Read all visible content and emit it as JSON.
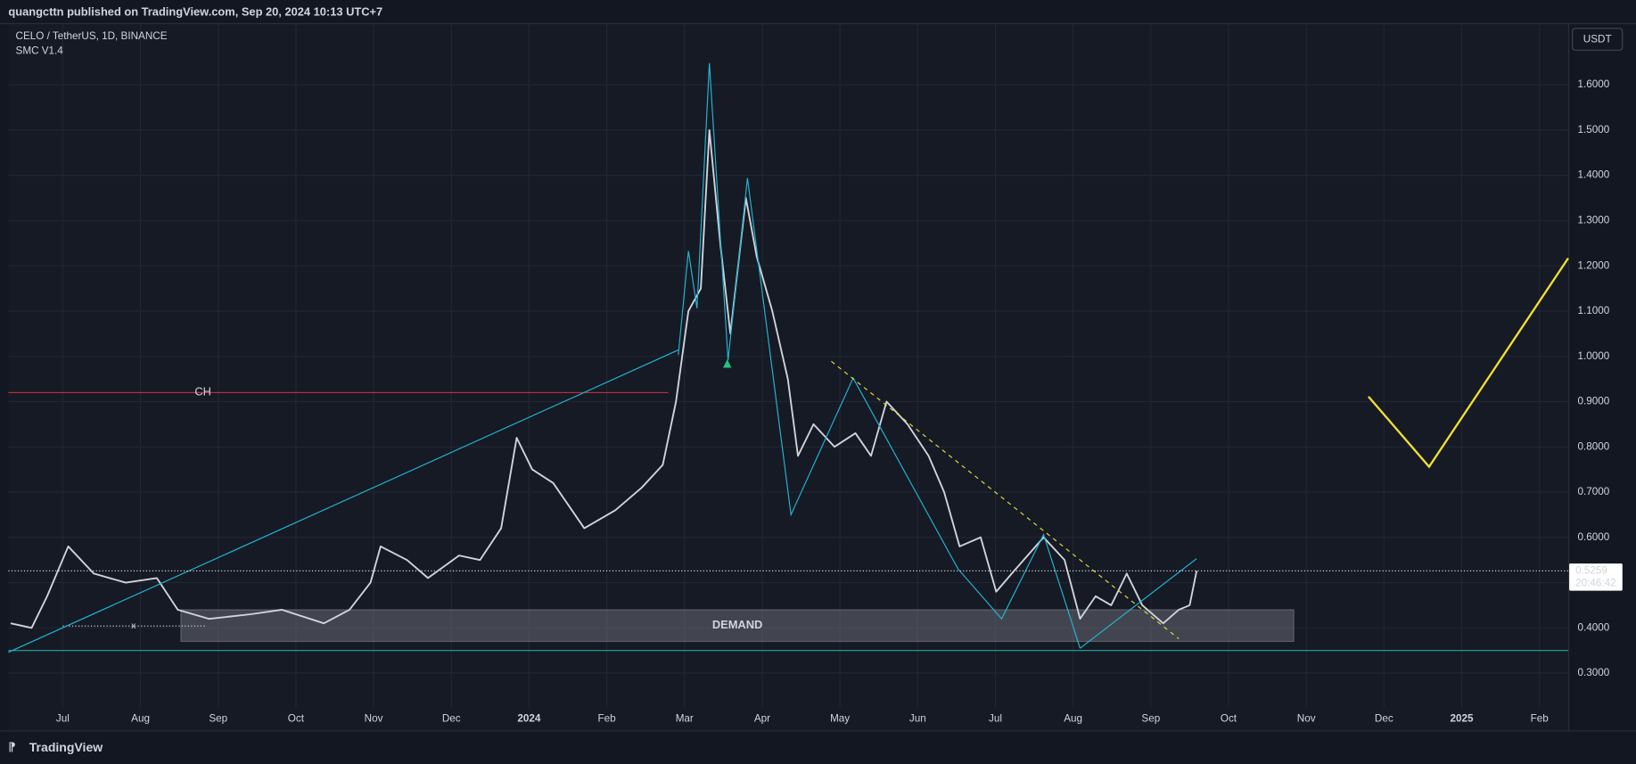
{
  "header": {
    "publisher": "quangcttn published on TradingView.com, Sep 20, 2024 10:13 UTC+7"
  },
  "chart_data": {
    "type": "line",
    "symbol": "CELO / TetherUS, 1D, BINANCE",
    "indicator": "SMC V1.4",
    "currency": "USDT",
    "x": [
      -0.67,
      -0.4,
      -0.2,
      0.07,
      0.4,
      0.81,
      1.21,
      1.48,
      1.88,
      2.42,
      2.82,
      3.36,
      3.69,
      3.96,
      4.09,
      4.43,
      4.7,
      5.1,
      5.37,
      5.64,
      5.84,
      6.04,
      6.31,
      6.71,
      7.11,
      7.45,
      7.72,
      7.89,
      8.05,
      8.21,
      8.32,
      8.46,
      8.59,
      8.79,
      8.93,
      9.13,
      9.33,
      9.46,
      9.66,
      9.93,
      10.2,
      10.4,
      10.6,
      10.87,
      11.14,
      11.34,
      11.54,
      11.81,
      12.01,
      12.21,
      12.62,
      12.89,
      13.09,
      13.29,
      13.49,
      13.69,
      13.89,
      14.16,
      14.36,
      14.5,
      14.59
    ],
    "values": [
      0.41,
      0.4,
      0.47,
      0.58,
      0.52,
      0.5,
      0.51,
      0.44,
      0.42,
      0.43,
      0.44,
      0.41,
      0.44,
      0.5,
      0.58,
      0.55,
      0.51,
      0.56,
      0.55,
      0.62,
      0.82,
      0.75,
      0.72,
      0.62,
      0.66,
      0.71,
      0.76,
      0.9,
      1.1,
      1.15,
      1.5,
      1.25,
      1.05,
      1.35,
      1.22,
      1.1,
      0.95,
      0.78,
      0.85,
      0.8,
      0.83,
      0.78,
      0.9,
      0.85,
      0.78,
      0.7,
      0.58,
      0.6,
      0.48,
      0.52,
      0.6,
      0.55,
      0.42,
      0.47,
      0.45,
      0.52,
      0.45,
      0.41,
      0.44,
      0.45,
      0.526
    ],
    "color": "#d1d4dc",
    "xlim": [
      -0.7,
      19.37
    ],
    "ylim": [
      0.224,
      1.734
    ],
    "xticks": [
      {
        "value": 0,
        "label": "Jul"
      },
      {
        "value": 1,
        "label": "Aug"
      },
      {
        "value": 2,
        "label": "Sep"
      },
      {
        "value": 3,
        "label": "Oct"
      },
      {
        "value": 4,
        "label": "Nov"
      },
      {
        "value": 5,
        "label": "Dec"
      },
      {
        "value": 6,
        "label": "2024"
      },
      {
        "value": 7,
        "label": "Feb"
      },
      {
        "value": 8,
        "label": "Mar"
      },
      {
        "value": 9,
        "label": "Apr"
      },
      {
        "value": 10,
        "label": "May"
      },
      {
        "value": 11,
        "label": "Jun"
      },
      {
        "value": 12,
        "label": "Jul"
      },
      {
        "value": 13,
        "label": "Aug"
      },
      {
        "value": 14,
        "label": "Sep"
      },
      {
        "value": 15,
        "label": "Oct"
      },
      {
        "value": 16,
        "label": "Nov"
      },
      {
        "value": 17,
        "label": "Dec"
      },
      {
        "value": 18,
        "label": "2025"
      },
      {
        "value": 19,
        "label": "Feb"
      }
    ],
    "yticks": [
      {
        "value": 0.3,
        "label": "0.3000"
      },
      {
        "value": 0.4,
        "label": "0.4000"
      },
      {
        "value": 0.5,
        "label": "0.5000"
      },
      {
        "value": 0.6,
        "label": "0.6000"
      },
      {
        "value": 0.7,
        "label": "0.7000"
      },
      {
        "value": 0.8,
        "label": "0.8000"
      },
      {
        "value": 0.9,
        "label": "0.9000"
      },
      {
        "value": 1.0,
        "label": "1.0000"
      },
      {
        "value": 1.1,
        "label": "1.1000"
      },
      {
        "value": 1.2,
        "label": "1.2000"
      },
      {
        "value": 1.3,
        "label": "1.3000"
      },
      {
        "value": 1.4,
        "label": "1.4000"
      },
      {
        "value": 1.5,
        "label": "1.5000"
      },
      {
        "value": 1.6,
        "label": "1.6000"
      }
    ],
    "grid": true,
    "last_price": 0.5259,
    "countdown": "20:46:42",
    "demand": {
      "label": "DEMAND",
      "low": 0.37,
      "high": 0.44,
      "x": [
        1.52,
        15.84
      ]
    },
    "ch": {
      "label": "CH",
      "price": 0.92,
      "x": [
        -0.7,
        7.79
      ],
      "color": "#f23645"
    },
    "support": {
      "price": 0.35,
      "color": "#26a69a"
    },
    "x_mark": {
      "label": "x",
      "x": 0.91,
      "price": 0.404
    },
    "signal": {
      "x": 8.55,
      "price": 0.984,
      "color": "#26c281"
    },
    "trendlines": [
      {
        "x": [
          -0.7,
          7.92
        ],
        "y": [
          0.346,
          1.014
        ],
        "color": "#22b5d0",
        "dashed": false
      },
      {
        "x": [
          7.92,
          8.05,
          8.16,
          8.32,
          8.56,
          8.81,
          9.37,
          10.17,
          11.52,
          12.08,
          12.62,
          13.09
        ],
        "y": [
          1.003,
          1.233,
          1.106,
          1.648,
          0.991,
          1.394,
          0.65,
          0.952,
          0.53,
          0.42,
          0.606,
          0.355
        ],
        "color": "#22b5d0",
        "dashed": false
      },
      {
        "x": [
          13.09,
          14.59
        ],
        "y": [
          0.355,
          0.553
        ],
        "color": "#22b5d0",
        "dashed": false
      },
      {
        "x": [
          9.89,
          14.36
        ],
        "y": [
          0.989,
          0.376
        ],
        "color": "#e5d93a",
        "dashed": true
      },
      {
        "x": [
          16.8,
          17.58,
          19.37
        ],
        "y": [
          0.911,
          0.756,
          1.217
        ],
        "color": "#f0e130",
        "dashed": false
      }
    ]
  },
  "footer": {
    "brand": "TradingView"
  }
}
